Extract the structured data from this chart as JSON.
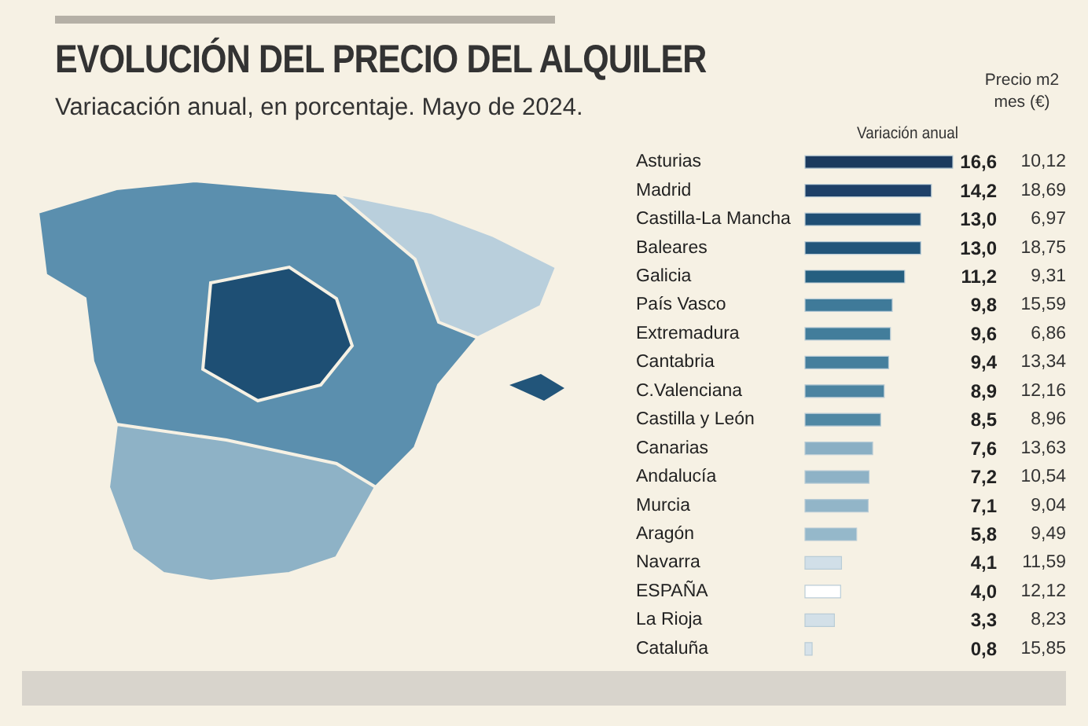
{
  "chart_data": [
    {
      "type": "bar",
      "orientation": "horizontal",
      "title": "EVOLUCIÓN DEL PRECIO DEL ALQUILER",
      "subtitle": "Variacación anual, en porcentaje. Mayo de 2024.",
      "categories": [
        "Asturias",
        "Madrid",
        "Castilla-La Mancha",
        "Baleares",
        "Galicia",
        "País Vasco",
        "Extremadura",
        "Cantabria",
        "C.Valenciana",
        "Castilla y León",
        "Canarias",
        "Andalucía",
        "Murcia",
        "Aragón",
        "Navarra",
        "ESPAÑA",
        "La Rioja",
        "Cataluña"
      ],
      "series": [
        {
          "name": "Variación anual",
          "values": [
            16.6,
            14.2,
            13.0,
            13.0,
            11.2,
            9.8,
            9.6,
            9.4,
            8.9,
            8.5,
            7.6,
            7.2,
            7.1,
            5.8,
            4.1,
            4.0,
            3.3,
            0.8
          ],
          "value_labels": [
            "16,6",
            "14,2",
            "13,0",
            "13,0",
            "11,2",
            "9,8",
            "9,6",
            "9,4",
            "8,9",
            "8,5",
            "7,6",
            "7,2",
            "7,1",
            "5,8",
            "4,1",
            "4,0",
            "3,3",
            "0,8"
          ],
          "colors": [
            "#1b3a5e",
            "#1e4068",
            "#1f4e74",
            "#22557a",
            "#255f80",
            "#3f7a99",
            "#427d9b",
            "#467f9d",
            "#4c84a1",
            "#5088a4",
            "#8aafc4",
            "#8eb2c6",
            "#92b5c8",
            "#95b8ca",
            "#d1dfe8",
            "#ffffff",
            "#d3e0e8",
            "#d6e2ea"
          ]
        }
      ]
    },
    {
      "type": "other",
      "title": "Precio m2 mes (€)",
      "annotations": [
        "10,12",
        "18,69",
        "6,97",
        "18,75",
        "9,31",
        "15,59",
        "6,86",
        "13,34",
        "12,16",
        "8,96",
        "13,63",
        "10,54",
        "9,04",
        "9,49",
        "11,59",
        "12,12",
        "8,23",
        "15,85"
      ]
    }
  ]
}
